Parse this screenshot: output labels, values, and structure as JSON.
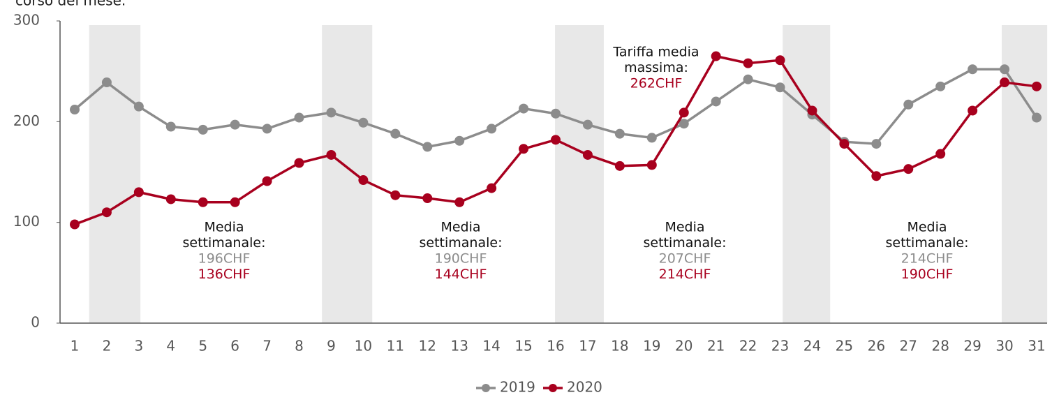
{
  "chart_data": {
    "type": "line",
    "subtitle": "corso del mese.",
    "categories": [
      "1",
      "2",
      "3",
      "4",
      "5",
      "6",
      "7",
      "8",
      "9",
      "10",
      "11",
      "12",
      "13",
      "14",
      "15",
      "16",
      "17",
      "18",
      "19",
      "20",
      "21",
      "22",
      "23",
      "24",
      "25",
      "26",
      "27",
      "28",
      "29",
      "30",
      "31"
    ],
    "series": [
      {
        "name": "2019",
        "color": "#8c8c8c",
        "values": [
          212,
          239,
          215,
          195,
          192,
          197,
          193,
          204,
          209,
          199,
          188,
          175,
          181,
          193,
          213,
          208,
          197,
          188,
          184,
          198,
          220,
          242,
          234,
          207,
          180,
          178,
          217,
          235,
          252,
          252,
          204
        ]
      },
      {
        "name": "2020",
        "color": "#a8001e",
        "values": [
          98,
          110,
          130,
          123,
          120,
          120,
          141,
          159,
          167,
          142,
          127,
          124,
          120,
          134,
          173,
          182,
          167,
          156,
          157,
          209,
          265,
          258,
          261,
          211,
          178,
          146,
          153,
          168,
          211,
          239,
          235
        ]
      }
    ],
    "ylim": [
      0,
      300
    ],
    "yticks": [
      0,
      100,
      200,
      300
    ],
    "shaded_spans": [
      [
        1.45,
        3.05
      ],
      [
        8.71,
        10.28
      ],
      [
        15.98,
        17.5
      ],
      [
        23.08,
        24.56
      ],
      [
        29.91,
        31.33
      ]
    ],
    "annotations": [
      {
        "label": [
          "Media",
          "settimanale:"
        ],
        "values": [
          "196CHF",
          "136CHF"
        ]
      },
      {
        "label": [
          "Media",
          "settimanale:"
        ],
        "values": [
          "190CHF",
          "144CHF"
        ]
      },
      {
        "label": [
          "Media",
          "settimanale:"
        ],
        "values": [
          "207CHF",
          "214CHF"
        ]
      },
      {
        "label": [
          "Media",
          "settimanale:"
        ],
        "values": [
          "214CHF",
          "190CHF"
        ]
      },
      {
        "label": [
          "Tariffa media",
          "massima:"
        ],
        "values": [
          "262CHF"
        ]
      }
    ],
    "legend": "bottom"
  }
}
